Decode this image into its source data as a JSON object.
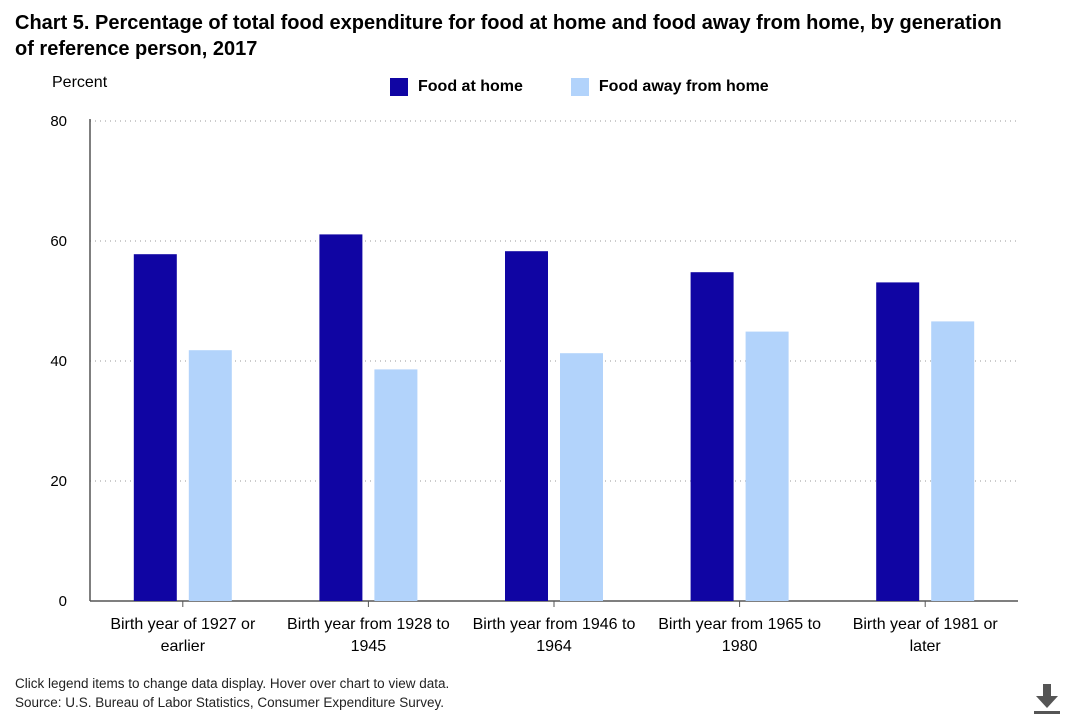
{
  "title": "Chart 5. Percentage of total food expenditure for food at home and food away from home, by generation of reference person, 2017",
  "chart_data": {
    "type": "bar",
    "title": "Chart 5. Percentage of total food expenditure for food at home and food away from home, by generation of reference person, 2017",
    "xlabel": "",
    "ylabel": "Percent",
    "ylim": [
      0,
      80
    ],
    "yticks": [
      0,
      20,
      40,
      60,
      80
    ],
    "grid": true,
    "legend_position": "top",
    "categories": [
      [
        "Birth year of 1927 or",
        "earlier"
      ],
      [
        "Birth year from 1928 to",
        "1945"
      ],
      [
        "Birth year from 1946 to",
        "1964"
      ],
      [
        "Birth year from 1965 to",
        "1980"
      ],
      [
        "Birth year of 1981 or",
        "later"
      ]
    ],
    "series": [
      {
        "name": "Food at home",
        "color": "#1005a3",
        "values": [
          57.8,
          61.1,
          58.3,
          54.8,
          53.1
        ]
      },
      {
        "name": "Food away from home",
        "color": "#b2d3fb",
        "values": [
          41.8,
          38.6,
          41.3,
          44.9,
          46.6
        ]
      }
    ]
  },
  "footer": {
    "line1": "Click legend items to change data display. Hover over chart to view data.",
    "line2": "Source: U.S. Bureau of Labor Statistics, Consumer Expenditure Survey."
  },
  "icons": {
    "download": "download-icon"
  }
}
